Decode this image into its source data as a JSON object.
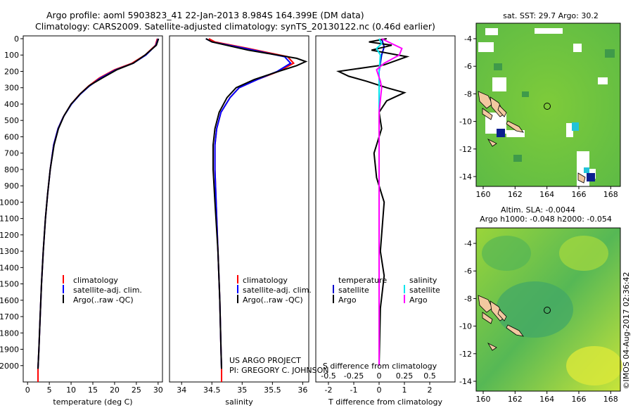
{
  "header": {
    "line1": "Argo profile: aoml 5903823_41 22-Jan-2013 8.984S 164.399E (DM data)",
    "line2": "Climatology: CARS2009. Satellite-adjusted climatology: synTS_20130122.nc (0.46d earlier)"
  },
  "colors": {
    "climatology": "#ff0000",
    "satellite": "#0000ff",
    "argo": "#000000",
    "sat_T_diff": "#0000cc",
    "sat_S_diff": "#00e5ee",
    "argo_S_diff": "#ff00ff"
  },
  "chart_data": [
    {
      "id": "temperature",
      "type": "line",
      "xlabel": "temperature (deg C)",
      "ylabel": "",
      "xlim": [
        -1,
        31
      ],
      "ylim": [
        2100,
        0
      ],
      "xticks": [
        "0",
        "5",
        "10",
        "15",
        "20",
        "25",
        "30"
      ],
      "yticks": [
        "0",
        "100",
        "200",
        "300",
        "400",
        "500",
        "600",
        "700",
        "800",
        "900",
        "1000",
        "1100",
        "1200",
        "1300",
        "1400",
        "1500",
        "1600",
        "1700",
        "1800",
        "1900",
        "2000"
      ],
      "legend": [
        "climatology",
        "satellite-adj. clim.",
        "Argo(..raw -QC)"
      ],
      "series": [
        {
          "name": "climatology",
          "color": "#ff0000",
          "points": [
            [
              29.8,
              0
            ],
            [
              29.4,
              40
            ],
            [
              27,
              100
            ],
            [
              24,
              150
            ],
            [
              20,
              190
            ],
            [
              16.5,
              240
            ],
            [
              14,
              290
            ],
            [
              12,
              340
            ],
            [
              10,
              400
            ],
            [
              8.2,
              480
            ],
            [
              7,
              550
            ],
            [
              6,
              650
            ],
            [
              5.2,
              800
            ],
            [
              4.6,
              950
            ],
            [
              4.1,
              1100
            ],
            [
              3.6,
              1300
            ],
            [
              3.2,
              1500
            ],
            [
              2.9,
              1700
            ],
            [
              2.6,
              1900
            ],
            [
              2.4,
              2020
            ]
          ]
        },
        {
          "name": "satellite-adj. clim.",
          "color": "#0000ff",
          "points": [
            [
              30,
              0
            ],
            [
              29.5,
              40
            ],
            [
              27.2,
              100
            ],
            [
              24.3,
              150
            ],
            [
              20.3,
              190
            ],
            [
              16.8,
              240
            ],
            [
              14.2,
              290
            ],
            [
              12.1,
              340
            ],
            [
              10.1,
              400
            ],
            [
              8.2,
              480
            ],
            [
              7,
              550
            ],
            [
              6,
              650
            ],
            [
              5.2,
              800
            ],
            [
              4.6,
              950
            ],
            [
              4.1,
              1100
            ],
            [
              3.6,
              1300
            ],
            [
              3.2,
              1500
            ],
            [
              2.9,
              1700
            ],
            [
              2.6,
              1900
            ],
            [
              2.4,
              2020
            ]
          ]
        },
        {
          "name": "Argo(..raw -QC)",
          "color": "#000000",
          "points": [
            [
              30.1,
              0
            ],
            [
              29.6,
              40
            ],
            [
              27,
              100
            ],
            [
              24.3,
              150
            ],
            [
              20.5,
              190
            ],
            [
              17.2,
              240
            ],
            [
              14.3,
              285
            ],
            [
              12.2,
              335
            ],
            [
              10,
              400
            ],
            [
              8.4,
              470
            ],
            [
              7.1,
              550
            ],
            [
              6.1,
              650
            ],
            [
              5.2,
              800
            ],
            [
              4.6,
              950
            ],
            [
              4.1,
              1100
            ],
            [
              3.6,
              1300
            ],
            [
              3.2,
              1500
            ],
            [
              2.9,
              1700
            ],
            [
              2.6,
              1900
            ],
            [
              2.4,
              2020
            ]
          ]
        }
      ]
    },
    {
      "id": "salinity",
      "type": "line",
      "xlabel": "salinity",
      "ylabel": "",
      "xlim": [
        33.8,
        36.1
      ],
      "ylim": [
        2100,
        0
      ],
      "xticks": [
        "34",
        "34.5",
        "35",
        "35.5",
        "36"
      ],
      "legend": [
        "climatology",
        "satellite-adj. clim.",
        "Argo(..raw -QC)"
      ],
      "series": [
        {
          "name": "climatology",
          "color": "#ff0000",
          "points": [
            [
              34.45,
              0
            ],
            [
              34.55,
              20
            ],
            [
              35.1,
              60
            ],
            [
              35.75,
              110
            ],
            [
              35.85,
              150
            ],
            [
              35.6,
              200
            ],
            [
              35.25,
              250
            ],
            [
              34.95,
              300
            ],
            [
              34.8,
              360
            ],
            [
              34.65,
              450
            ],
            [
              34.58,
              550
            ],
            [
              34.55,
              650
            ],
            [
              34.55,
              800
            ],
            [
              34.57,
              1000
            ],
            [
              34.6,
              1300
            ],
            [
              34.63,
              1600
            ],
            [
              34.65,
              1900
            ],
            [
              34.66,
              2020
            ]
          ]
        },
        {
          "name": "satellite-adj. clim.",
          "color": "#0000ff",
          "points": [
            [
              34.4,
              0
            ],
            [
              34.5,
              20
            ],
            [
              35.05,
              60
            ],
            [
              35.7,
              110
            ],
            [
              35.8,
              150
            ],
            [
              35.58,
              200
            ],
            [
              35.25,
              250
            ],
            [
              34.95,
              300
            ],
            [
              34.8,
              360
            ],
            [
              34.65,
              450
            ],
            [
              34.58,
              550
            ],
            [
              34.55,
              650
            ],
            [
              34.55,
              800
            ],
            [
              34.57,
              1000
            ],
            [
              34.6,
              1300
            ],
            [
              34.63,
              1600
            ],
            [
              34.65,
              1900
            ],
            [
              34.66,
              2020
            ]
          ]
        },
        {
          "name": "Argo(..raw -QC)",
          "color": "#000000",
          "points": [
            [
              34.4,
              0
            ],
            [
              34.5,
              20
            ],
            [
              35.1,
              70
            ],
            [
              35.9,
              120
            ],
            [
              36.05,
              140
            ],
            [
              35.9,
              165
            ],
            [
              35.6,
              200
            ],
            [
              35.2,
              250
            ],
            [
              34.9,
              300
            ],
            [
              34.75,
              360
            ],
            [
              34.62,
              450
            ],
            [
              34.55,
              550
            ],
            [
              34.52,
              650
            ],
            [
              34.52,
              800
            ],
            [
              34.55,
              1000
            ],
            [
              34.6,
              1300
            ],
            [
              34.63,
              1600
            ],
            [
              34.65,
              1900
            ],
            [
              34.66,
              2020
            ]
          ]
        }
      ]
    },
    {
      "id": "difference",
      "type": "line",
      "xlabel": "T difference from climatology",
      "xlabel2": "S difference from climatology",
      "xlim": [
        -2.5,
        3
      ],
      "ylim": [
        2100,
        0
      ],
      "xticks_bottom": [
        "-2",
        "-1",
        "0",
        "1",
        "2"
      ],
      "xticks_top": [
        "-0.5",
        "-0.25",
        "0",
        "0.25",
        "0.5"
      ],
      "legend_temperature_title": "temperature",
      "legend_salinity_title": "salinity",
      "legend_temperature": [
        "satellite",
        "Argo"
      ],
      "legend_salinity": [
        "satellite",
        "Argo"
      ],
      "series": [
        {
          "name": "T satellite",
          "color": "#0000cc",
          "points": [
            [
              0.1,
              0
            ],
            [
              0.2,
              50
            ],
            [
              0.1,
              100
            ],
            [
              0,
              200
            ],
            [
              0,
              400
            ],
            [
              0,
              2000
            ]
          ]
        },
        {
          "name": "T Argo",
          "color": "#000000",
          "points": [
            [
              0.3,
              0
            ],
            [
              -0.4,
              20
            ],
            [
              0.5,
              40
            ],
            [
              -0.3,
              70
            ],
            [
              1.1,
              110
            ],
            [
              0.2,
              160
            ],
            [
              -1.6,
              200
            ],
            [
              -1.2,
              230
            ],
            [
              -0.5,
              260
            ],
            [
              0.3,
              300
            ],
            [
              1.0,
              330
            ],
            [
              0.3,
              380
            ],
            [
              0,
              450
            ],
            [
              0.1,
              550
            ],
            [
              -0.2,
              700
            ],
            [
              -0.1,
              850
            ],
            [
              0.2,
              1000
            ],
            [
              0.05,
              1300
            ],
            [
              0.2,
              1450
            ],
            [
              0.05,
              1650
            ],
            [
              0,
              2000
            ]
          ]
        },
        {
          "name": "S satellite",
          "color": "#00e5ee",
          "points": [
            [
              0,
              0
            ],
            [
              0.1,
              30
            ],
            [
              -0.1,
              60
            ],
            [
              0.05,
              100
            ],
            [
              0,
              200
            ],
            [
              0,
              400
            ],
            [
              0,
              2000
            ]
          ]
        },
        {
          "name": "S Argo",
          "color": "#ff00ff",
          "points": [
            [
              0.1,
              0
            ],
            [
              0.5,
              30
            ],
            [
              0.9,
              60
            ],
            [
              0.8,
              100
            ],
            [
              0.2,
              150
            ],
            [
              -0.1,
              190
            ],
            [
              0.05,
              260
            ],
            [
              0.1,
              300
            ],
            [
              0,
              450
            ],
            [
              0,
              2000
            ]
          ]
        }
      ]
    }
  ],
  "maps": {
    "sst": {
      "title": "sat. SST: 29.7 Argo: 30.2",
      "xticks": [
        "160",
        "162",
        "164",
        "166",
        "168"
      ],
      "yticks": [
        "-4",
        "-6",
        "-8",
        "-10",
        "-12",
        "-14"
      ]
    },
    "sla": {
      "title1": "Altim. SLA: -0.0044",
      "title2": "Argo h1000: -0.048 h2000: -0.054",
      "xticks": [
        "160",
        "162",
        "164",
        "166",
        "168"
      ],
      "yticks": [
        "-4",
        "-6",
        "-8",
        "-10",
        "-12",
        "-14"
      ]
    }
  },
  "footer": {
    "project": "US ARGO PROJECT",
    "pi": "PI: GREGORY C. JOHNSON",
    "stamp": "©IMOS 04-Aug-2017 02:36:42"
  }
}
